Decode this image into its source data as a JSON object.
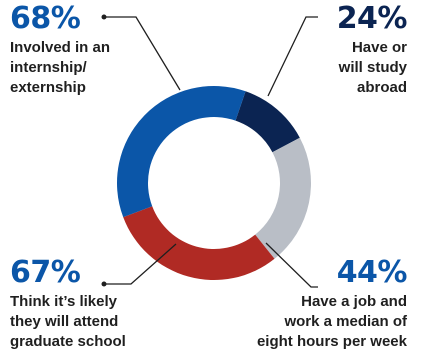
{
  "colors": {
    "dark_blue": "#0b2452",
    "blue": "#0b56a8",
    "red": "#b02a24",
    "gray": "#b9bec6",
    "line": "#1f1f1f"
  },
  "stats": [
    {
      "id": "tl",
      "percent": "68%",
      "label": "Involved in an\ninternship/\nexternship",
      "color": "#0b56a8"
    },
    {
      "id": "tr",
      "percent": "24%",
      "label": "Have or\nwill study\nabroad",
      "color": "#0b2452"
    },
    {
      "id": "bl",
      "percent": "67%",
      "label": "Think it’s likely\nthey will attend\ngraduate school",
      "color": "#0b56a8"
    },
    {
      "id": "br",
      "percent": "44%",
      "label": "Have a job and\nwork a median of\neight hours per week",
      "color": "#0b56a8"
    }
  ],
  "chart_data": {
    "type": "pie",
    "variant": "donut",
    "series": [
      {
        "values": [
          12,
          22,
          30,
          36
        ],
        "colors": [
          "#0b2452",
          "#b9bec6",
          "#b02a24",
          "#0b56a8"
        ]
      }
    ]
  }
}
